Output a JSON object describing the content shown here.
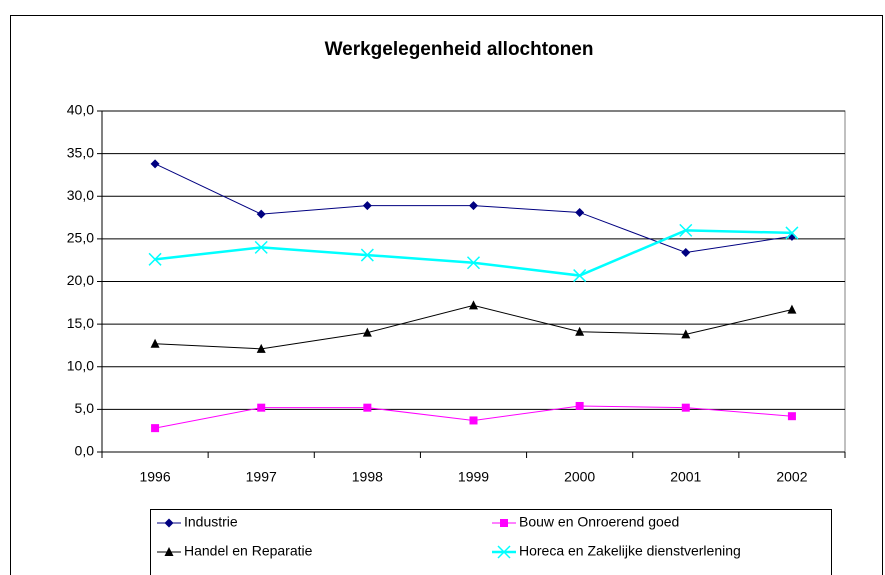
{
  "chart_data": {
    "type": "line",
    "title": "Werkgelegenheid allochtonen",
    "categories": [
      "1996",
      "1997",
      "1998",
      "1999",
      "2000",
      "2001",
      "2002"
    ],
    "series": [
      {
        "name": "Industrie",
        "color": "#000080",
        "marker": "diamond",
        "line_width": 1,
        "values": [
          33.8,
          27.9,
          28.9,
          28.9,
          28.1,
          23.4,
          25.3
        ]
      },
      {
        "name": "Bouw en Onroerend goed",
        "color": "#ff00ff",
        "marker": "square",
        "line_width": 1,
        "values": [
          2.8,
          5.2,
          5.2,
          3.7,
          5.4,
          5.2,
          4.2
        ]
      },
      {
        "name": "Handel en Reparatie",
        "color": "#000000",
        "marker": "triangle",
        "line_width": 1,
        "values": [
          12.7,
          12.1,
          14.0,
          17.2,
          14.1,
          13.8,
          16.7
        ]
      },
      {
        "name": "Horeca en Zakelijke dienstverlening",
        "color": "#00ffff",
        "marker": "x",
        "line_width": 2.5,
        "values": [
          22.6,
          24.0,
          23.1,
          22.2,
          20.7,
          26.0,
          25.7
        ]
      }
    ],
    "ylim": [
      0,
      40
    ],
    "yticks": [
      {
        "value": 0,
        "label": "0,0"
      },
      {
        "value": 5,
        "label": "5,0"
      },
      {
        "value": 10,
        "label": "10,0"
      },
      {
        "value": 15,
        "label": "15,0"
      },
      {
        "value": 20,
        "label": "20,0"
      },
      {
        "value": 25,
        "label": "25,0"
      },
      {
        "value": 30,
        "label": "30,0"
      },
      {
        "value": 35,
        "label": "35,0"
      },
      {
        "value": 40,
        "label": "40,0"
      }
    ],
    "grid": true,
    "legend": "bottom"
  }
}
